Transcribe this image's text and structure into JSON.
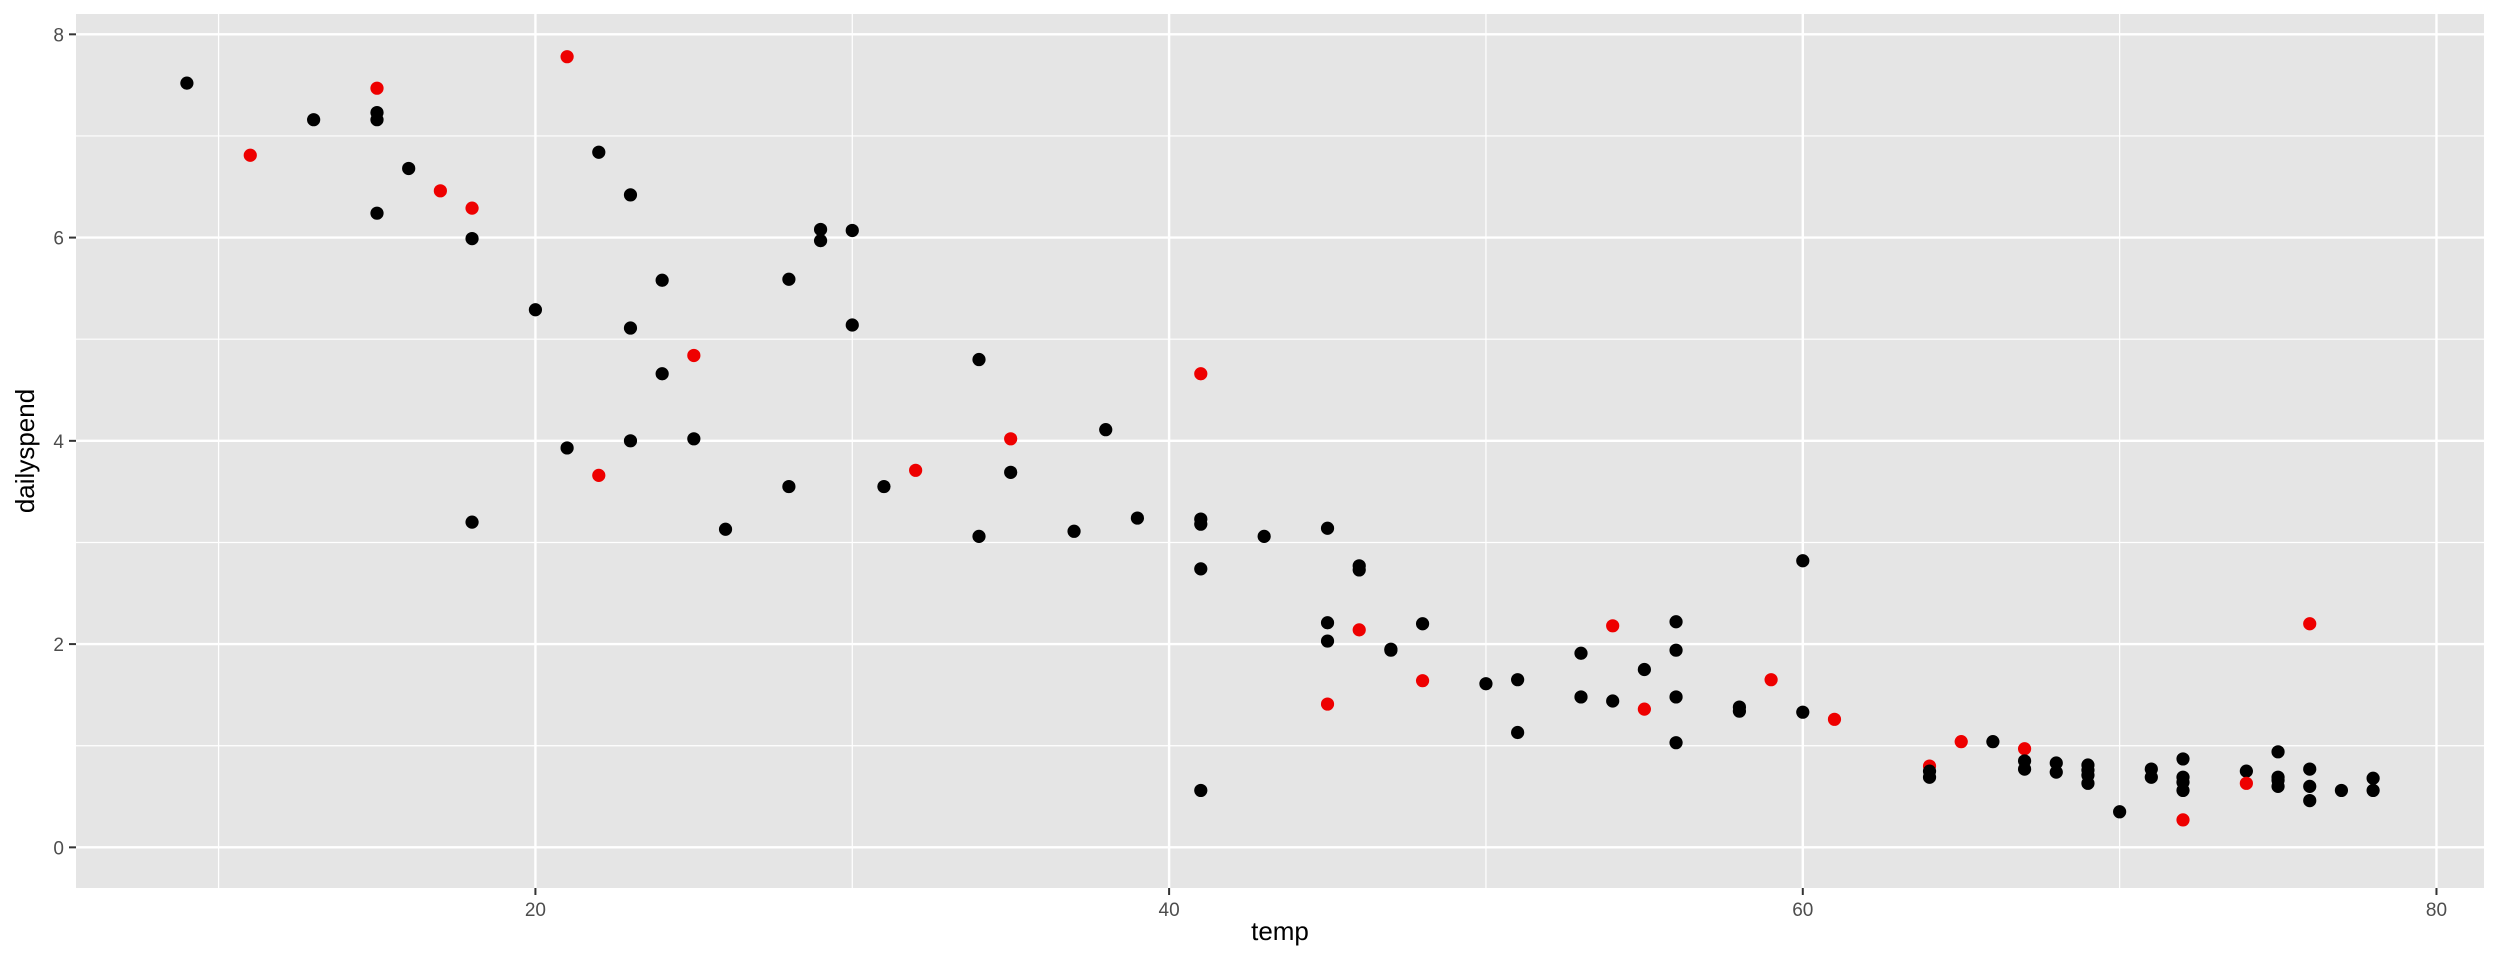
{
  "chart_data": {
    "type": "scatter",
    "title": "",
    "xlabel": "temp",
    "ylabel": "dailyspend",
    "xlim": [
      5.5,
      81.5
    ],
    "ylim": [
      -0.4,
      8.2
    ],
    "xticks": [
      20,
      40,
      60,
      80
    ],
    "yticks": [
      0,
      2,
      4,
      6,
      8
    ],
    "grid": true,
    "legend": "none",
    "colors": {
      "panel": "#e5e5e5",
      "grid": "#ffffff",
      "black": "#000000",
      "red": "#ee0000",
      "tick_text": "#4d4d4d",
      "tick_mark": "#333333"
    },
    "points": [
      {
        "x": 9,
        "y": 7.52,
        "c": "black"
      },
      {
        "x": 11,
        "y": 6.81,
        "c": "red"
      },
      {
        "x": 13,
        "y": 7.16,
        "c": "black"
      },
      {
        "x": 15,
        "y": 7.47,
        "c": "red"
      },
      {
        "x": 15,
        "y": 7.23,
        "c": "black"
      },
      {
        "x": 15,
        "y": 7.16,
        "c": "black"
      },
      {
        "x": 15,
        "y": 6.24,
        "c": "black"
      },
      {
        "x": 16,
        "y": 6.68,
        "c": "black"
      },
      {
        "x": 17,
        "y": 6.46,
        "c": "red"
      },
      {
        "x": 18,
        "y": 6.29,
        "c": "red"
      },
      {
        "x": 18,
        "y": 5.99,
        "c": "black"
      },
      {
        "x": 18,
        "y": 3.2,
        "c": "black"
      },
      {
        "x": 20,
        "y": 5.29,
        "c": "black"
      },
      {
        "x": 21,
        "y": 7.78,
        "c": "red"
      },
      {
        "x": 21,
        "y": 3.93,
        "c": "black"
      },
      {
        "x": 22,
        "y": 6.84,
        "c": "black"
      },
      {
        "x": 22,
        "y": 3.66,
        "c": "red"
      },
      {
        "x": 23,
        "y": 6.42,
        "c": "black"
      },
      {
        "x": 23,
        "y": 5.11,
        "c": "black"
      },
      {
        "x": 23,
        "y": 4.0,
        "c": "black"
      },
      {
        "x": 24,
        "y": 5.58,
        "c": "black"
      },
      {
        "x": 24,
        "y": 4.66,
        "c": "black"
      },
      {
        "x": 25,
        "y": 4.84,
        "c": "red"
      },
      {
        "x": 25,
        "y": 4.02,
        "c": "black"
      },
      {
        "x": 26,
        "y": 3.13,
        "c": "black"
      },
      {
        "x": 28,
        "y": 5.59,
        "c": "black"
      },
      {
        "x": 28,
        "y": 3.55,
        "c": "black"
      },
      {
        "x": 29,
        "y": 6.08,
        "c": "black"
      },
      {
        "x": 29,
        "y": 5.97,
        "c": "black"
      },
      {
        "x": 30,
        "y": 6.07,
        "c": "black"
      },
      {
        "x": 30,
        "y": 5.14,
        "c": "black"
      },
      {
        "x": 31,
        "y": 3.55,
        "c": "black"
      },
      {
        "x": 32,
        "y": 3.71,
        "c": "red"
      },
      {
        "x": 34,
        "y": 4.8,
        "c": "black"
      },
      {
        "x": 34,
        "y": 3.06,
        "c": "black"
      },
      {
        "x": 35,
        "y": 4.02,
        "c": "red"
      },
      {
        "x": 35,
        "y": 3.69,
        "c": "black"
      },
      {
        "x": 37,
        "y": 3.11,
        "c": "black"
      },
      {
        "x": 38,
        "y": 4.11,
        "c": "black"
      },
      {
        "x": 39,
        "y": 3.24,
        "c": "black"
      },
      {
        "x": 41,
        "y": 4.66,
        "c": "red"
      },
      {
        "x": 41,
        "y": 3.23,
        "c": "black"
      },
      {
        "x": 41,
        "y": 3.18,
        "c": "black"
      },
      {
        "x": 41,
        "y": 2.74,
        "c": "black"
      },
      {
        "x": 41,
        "y": 0.56,
        "c": "black"
      },
      {
        "x": 43,
        "y": 3.06,
        "c": "black"
      },
      {
        "x": 45,
        "y": 3.14,
        "c": "black"
      },
      {
        "x": 45,
        "y": 2.21,
        "c": "black"
      },
      {
        "x": 45,
        "y": 2.03,
        "c": "black"
      },
      {
        "x": 45,
        "y": 1.41,
        "c": "red"
      },
      {
        "x": 46,
        "y": 2.77,
        "c": "black"
      },
      {
        "x": 46,
        "y": 2.73,
        "c": "black"
      },
      {
        "x": 46,
        "y": 2.14,
        "c": "red"
      },
      {
        "x": 47,
        "y": 1.95,
        "c": "black"
      },
      {
        "x": 47,
        "y": 1.94,
        "c": "black"
      },
      {
        "x": 48,
        "y": 2.2,
        "c": "black"
      },
      {
        "x": 48,
        "y": 1.64,
        "c": "red"
      },
      {
        "x": 50,
        "y": 1.61,
        "c": "black"
      },
      {
        "x": 51,
        "y": 1.65,
        "c": "black"
      },
      {
        "x": 51,
        "y": 1.13,
        "c": "black"
      },
      {
        "x": 53,
        "y": 1.91,
        "c": "black"
      },
      {
        "x": 53,
        "y": 1.48,
        "c": "black"
      },
      {
        "x": 54,
        "y": 2.18,
        "c": "red"
      },
      {
        "x": 54,
        "y": 1.44,
        "c": "black"
      },
      {
        "x": 55,
        "y": 1.75,
        "c": "black"
      },
      {
        "x": 55,
        "y": 1.36,
        "c": "red"
      },
      {
        "x": 56,
        "y": 2.22,
        "c": "black"
      },
      {
        "x": 56,
        "y": 1.94,
        "c": "black"
      },
      {
        "x": 56,
        "y": 1.48,
        "c": "black"
      },
      {
        "x": 56,
        "y": 1.03,
        "c": "black"
      },
      {
        "x": 58,
        "y": 1.38,
        "c": "black"
      },
      {
        "x": 58,
        "y": 1.34,
        "c": "black"
      },
      {
        "x": 59,
        "y": 1.65,
        "c": "red"
      },
      {
        "x": 60,
        "y": 2.82,
        "c": "black"
      },
      {
        "x": 60,
        "y": 1.33,
        "c": "black"
      },
      {
        "x": 61,
        "y": 1.26,
        "c": "red"
      },
      {
        "x": 64,
        "y": 0.8,
        "c": "red"
      },
      {
        "x": 64,
        "y": 0.75,
        "c": "black"
      },
      {
        "x": 64,
        "y": 0.69,
        "c": "black"
      },
      {
        "x": 65,
        "y": 1.04,
        "c": "red"
      },
      {
        "x": 66,
        "y": 1.04,
        "c": "black"
      },
      {
        "x": 67,
        "y": 0.97,
        "c": "red"
      },
      {
        "x": 67,
        "y": 0.85,
        "c": "black"
      },
      {
        "x": 67,
        "y": 0.77,
        "c": "black"
      },
      {
        "x": 68,
        "y": 0.83,
        "c": "black"
      },
      {
        "x": 68,
        "y": 0.74,
        "c": "black"
      },
      {
        "x": 69,
        "y": 0.81,
        "c": "black"
      },
      {
        "x": 69,
        "y": 0.76,
        "c": "black"
      },
      {
        "x": 69,
        "y": 0.71,
        "c": "black"
      },
      {
        "x": 69,
        "y": 0.63,
        "c": "black"
      },
      {
        "x": 70,
        "y": 0.35,
        "c": "black"
      },
      {
        "x": 71,
        "y": 0.77,
        "c": "black"
      },
      {
        "x": 71,
        "y": 0.69,
        "c": "black"
      },
      {
        "x": 72,
        "y": 0.87,
        "c": "black"
      },
      {
        "x": 72,
        "y": 0.69,
        "c": "black"
      },
      {
        "x": 72,
        "y": 0.64,
        "c": "black"
      },
      {
        "x": 72,
        "y": 0.56,
        "c": "black"
      },
      {
        "x": 72,
        "y": 0.27,
        "c": "red"
      },
      {
        "x": 74,
        "y": 0.75,
        "c": "black"
      },
      {
        "x": 74,
        "y": 0.63,
        "c": "red"
      },
      {
        "x": 75,
        "y": 0.94,
        "c": "black"
      },
      {
        "x": 75,
        "y": 0.69,
        "c": "black"
      },
      {
        "x": 75,
        "y": 0.66,
        "c": "black"
      },
      {
        "x": 75,
        "y": 0.6,
        "c": "black"
      },
      {
        "x": 76,
        "y": 2.2,
        "c": "red"
      },
      {
        "x": 76,
        "y": 0.77,
        "c": "black"
      },
      {
        "x": 76,
        "y": 0.6,
        "c": "black"
      },
      {
        "x": 76,
        "y": 0.46,
        "c": "black"
      },
      {
        "x": 77,
        "y": 0.56,
        "c": "black"
      },
      {
        "x": 78,
        "y": 0.68,
        "c": "black"
      },
      {
        "x": 78,
        "y": 0.56,
        "c": "black"
      }
    ]
  }
}
